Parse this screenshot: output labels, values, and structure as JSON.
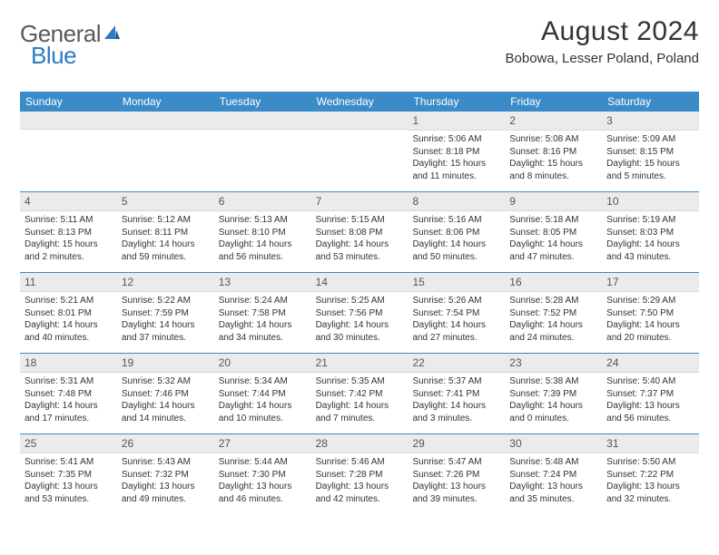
{
  "logo": {
    "general": "General",
    "blue": "Blue"
  },
  "header": {
    "month": "August 2024",
    "location": "Bobowa, Lesser Poland, Poland"
  },
  "colors": {
    "header_bar": "#3b8bc8",
    "daynum_bg": "#ebebeb",
    "text": "#333333",
    "logo_gray": "#808080",
    "logo_blue": "#2d7bc4"
  },
  "weekdays": [
    "Sunday",
    "Monday",
    "Tuesday",
    "Wednesday",
    "Thursday",
    "Friday",
    "Saturday"
  ],
  "weeks": [
    [
      null,
      null,
      null,
      null,
      {
        "n": "1",
        "sr": "Sunrise: 5:06 AM",
        "ss": "Sunset: 8:18 PM",
        "dl": "Daylight: 15 hours and 11 minutes."
      },
      {
        "n": "2",
        "sr": "Sunrise: 5:08 AM",
        "ss": "Sunset: 8:16 PM",
        "dl": "Daylight: 15 hours and 8 minutes."
      },
      {
        "n": "3",
        "sr": "Sunrise: 5:09 AM",
        "ss": "Sunset: 8:15 PM",
        "dl": "Daylight: 15 hours and 5 minutes."
      }
    ],
    [
      {
        "n": "4",
        "sr": "Sunrise: 5:11 AM",
        "ss": "Sunset: 8:13 PM",
        "dl": "Daylight: 15 hours and 2 minutes."
      },
      {
        "n": "5",
        "sr": "Sunrise: 5:12 AM",
        "ss": "Sunset: 8:11 PM",
        "dl": "Daylight: 14 hours and 59 minutes."
      },
      {
        "n": "6",
        "sr": "Sunrise: 5:13 AM",
        "ss": "Sunset: 8:10 PM",
        "dl": "Daylight: 14 hours and 56 minutes."
      },
      {
        "n": "7",
        "sr": "Sunrise: 5:15 AM",
        "ss": "Sunset: 8:08 PM",
        "dl": "Daylight: 14 hours and 53 minutes."
      },
      {
        "n": "8",
        "sr": "Sunrise: 5:16 AM",
        "ss": "Sunset: 8:06 PM",
        "dl": "Daylight: 14 hours and 50 minutes."
      },
      {
        "n": "9",
        "sr": "Sunrise: 5:18 AM",
        "ss": "Sunset: 8:05 PM",
        "dl": "Daylight: 14 hours and 47 minutes."
      },
      {
        "n": "10",
        "sr": "Sunrise: 5:19 AM",
        "ss": "Sunset: 8:03 PM",
        "dl": "Daylight: 14 hours and 43 minutes."
      }
    ],
    [
      {
        "n": "11",
        "sr": "Sunrise: 5:21 AM",
        "ss": "Sunset: 8:01 PM",
        "dl": "Daylight: 14 hours and 40 minutes."
      },
      {
        "n": "12",
        "sr": "Sunrise: 5:22 AM",
        "ss": "Sunset: 7:59 PM",
        "dl": "Daylight: 14 hours and 37 minutes."
      },
      {
        "n": "13",
        "sr": "Sunrise: 5:24 AM",
        "ss": "Sunset: 7:58 PM",
        "dl": "Daylight: 14 hours and 34 minutes."
      },
      {
        "n": "14",
        "sr": "Sunrise: 5:25 AM",
        "ss": "Sunset: 7:56 PM",
        "dl": "Daylight: 14 hours and 30 minutes."
      },
      {
        "n": "15",
        "sr": "Sunrise: 5:26 AM",
        "ss": "Sunset: 7:54 PM",
        "dl": "Daylight: 14 hours and 27 minutes."
      },
      {
        "n": "16",
        "sr": "Sunrise: 5:28 AM",
        "ss": "Sunset: 7:52 PM",
        "dl": "Daylight: 14 hours and 24 minutes."
      },
      {
        "n": "17",
        "sr": "Sunrise: 5:29 AM",
        "ss": "Sunset: 7:50 PM",
        "dl": "Daylight: 14 hours and 20 minutes."
      }
    ],
    [
      {
        "n": "18",
        "sr": "Sunrise: 5:31 AM",
        "ss": "Sunset: 7:48 PM",
        "dl": "Daylight: 14 hours and 17 minutes."
      },
      {
        "n": "19",
        "sr": "Sunrise: 5:32 AM",
        "ss": "Sunset: 7:46 PM",
        "dl": "Daylight: 14 hours and 14 minutes."
      },
      {
        "n": "20",
        "sr": "Sunrise: 5:34 AM",
        "ss": "Sunset: 7:44 PM",
        "dl": "Daylight: 14 hours and 10 minutes."
      },
      {
        "n": "21",
        "sr": "Sunrise: 5:35 AM",
        "ss": "Sunset: 7:42 PM",
        "dl": "Daylight: 14 hours and 7 minutes."
      },
      {
        "n": "22",
        "sr": "Sunrise: 5:37 AM",
        "ss": "Sunset: 7:41 PM",
        "dl": "Daylight: 14 hours and 3 minutes."
      },
      {
        "n": "23",
        "sr": "Sunrise: 5:38 AM",
        "ss": "Sunset: 7:39 PM",
        "dl": "Daylight: 14 hours and 0 minutes."
      },
      {
        "n": "24",
        "sr": "Sunrise: 5:40 AM",
        "ss": "Sunset: 7:37 PM",
        "dl": "Daylight: 13 hours and 56 minutes."
      }
    ],
    [
      {
        "n": "25",
        "sr": "Sunrise: 5:41 AM",
        "ss": "Sunset: 7:35 PM",
        "dl": "Daylight: 13 hours and 53 minutes."
      },
      {
        "n": "26",
        "sr": "Sunrise: 5:43 AM",
        "ss": "Sunset: 7:32 PM",
        "dl": "Daylight: 13 hours and 49 minutes."
      },
      {
        "n": "27",
        "sr": "Sunrise: 5:44 AM",
        "ss": "Sunset: 7:30 PM",
        "dl": "Daylight: 13 hours and 46 minutes."
      },
      {
        "n": "28",
        "sr": "Sunrise: 5:46 AM",
        "ss": "Sunset: 7:28 PM",
        "dl": "Daylight: 13 hours and 42 minutes."
      },
      {
        "n": "29",
        "sr": "Sunrise: 5:47 AM",
        "ss": "Sunset: 7:26 PM",
        "dl": "Daylight: 13 hours and 39 minutes."
      },
      {
        "n": "30",
        "sr": "Sunrise: 5:48 AM",
        "ss": "Sunset: 7:24 PM",
        "dl": "Daylight: 13 hours and 35 minutes."
      },
      {
        "n": "31",
        "sr": "Sunrise: 5:50 AM",
        "ss": "Sunset: 7:22 PM",
        "dl": "Daylight: 13 hours and 32 minutes."
      }
    ]
  ]
}
